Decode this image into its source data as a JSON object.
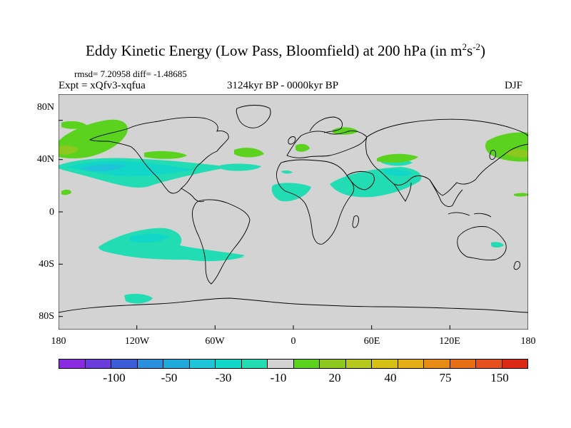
{
  "title": {
    "main": "Eddy Kinetic Energy (Low Pass, Bloomfield) at 200 hPa (in m",
    "sup1": "2",
    "mid": "s",
    "sup2": "-2",
    "end": ")"
  },
  "stats": "rmsd= 7.20958 diff= -1.48685",
  "expt": "Expt = xQfv3-xqfua",
  "period": "3124kyr BP - 0000kyr BP",
  "season": "DJF",
  "chart_data": {
    "type": "heatmap",
    "title": "Eddy Kinetic Energy (Low Pass, Bloomfield) at 200 hPa (in m2s-2)",
    "xlabel": "",
    "ylabel": "",
    "xlim": [
      -180,
      180
    ],
    "ylim": [
      -90,
      90
    ],
    "x_ticks": [
      "180",
      "120W",
      "60W",
      "0",
      "60E",
      "120E",
      "180"
    ],
    "y_ticks": [
      "80N",
      "40N",
      "0",
      "40S",
      "80S"
    ],
    "colorbar": {
      "labels": [
        "-100",
        "-50",
        "-30",
        "-10",
        "20",
        "40",
        "75",
        "150"
      ],
      "colors": [
        "#8a2be2",
        "#6a3cdc",
        "#3c5cd8",
        "#2a8fdc",
        "#20aadc",
        "#1ec4d8",
        "#12d6c8",
        "#22dcb4",
        "#d2d2d2",
        "#5ad21e",
        "#8cc81e",
        "#b4c81e",
        "#d6c014",
        "#e6ae14",
        "#e68c14",
        "#e66e14",
        "#e6501e",
        "#dc2814"
      ]
    },
    "regions": [
      {
        "name": "North Pacific positive",
        "lon": -165,
        "lat": 45,
        "sign": "positive",
        "level": "20-40"
      },
      {
        "name": "NW Pacific positive",
        "lon": 150,
        "lat": 45,
        "sign": "positive",
        "level": "20-40"
      },
      {
        "name": "North Atlantic positive",
        "lon": -90,
        "lat": 42,
        "sign": "positive",
        "level": "10-20"
      },
      {
        "name": "Mediterranean positive",
        "lon": 15,
        "lat": 47,
        "sign": "positive",
        "level": "10-20"
      },
      {
        "name": "Scandinavia positive",
        "lon": 40,
        "lat": 63,
        "sign": "positive",
        "level": "10-20"
      },
      {
        "name": "Central Asia positive",
        "lon": 75,
        "lat": 40,
        "sign": "positive",
        "level": "10-20"
      },
      {
        "name": "Subtropical Pacific negative",
        "lon": -135,
        "lat": 30,
        "sign": "negative",
        "level": "-30"
      },
      {
        "name": "Atlantic negative",
        "lon": -40,
        "lat": 30,
        "sign": "negative",
        "level": "-10"
      },
      {
        "name": "North Africa / Arabia negative",
        "lon": 55,
        "lat": 18,
        "sign": "negative",
        "level": "-10"
      },
      {
        "name": "South Pacific negative",
        "lon": -90,
        "lat": -35,
        "sign": "negative",
        "level": "-10"
      },
      {
        "name": "Southern Ocean negative",
        "lon": -120,
        "lat": -65,
        "sign": "negative",
        "level": "-10"
      }
    ]
  }
}
